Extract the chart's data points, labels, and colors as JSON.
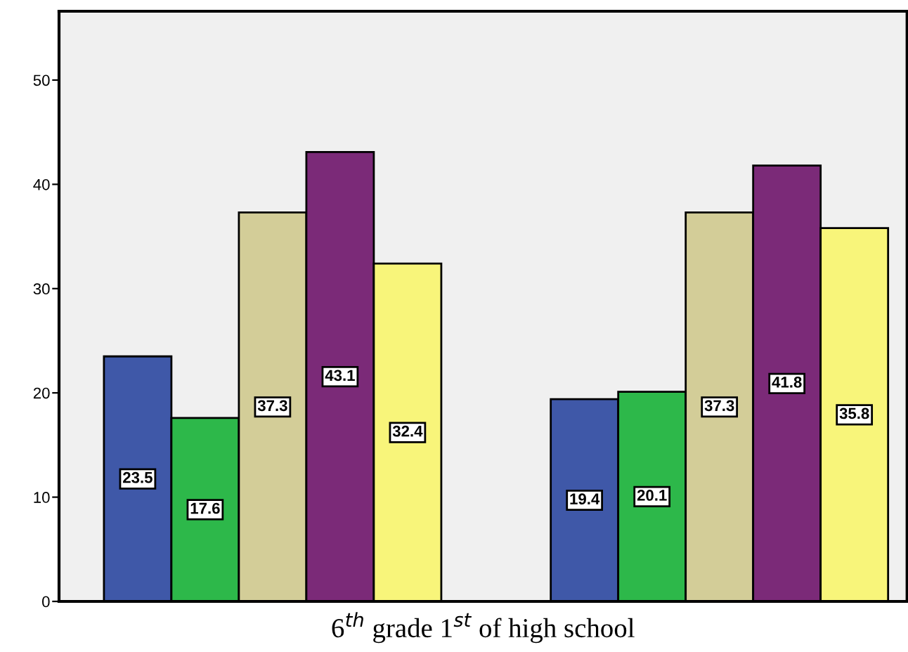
{
  "chart_data": {
    "type": "bar",
    "xlabel": "6$^{th}$ grade 1$^{st}$ of high school",
    "categories": [
      null,
      null
    ],
    "series": [
      {
        "color": "#3f58a8",
        "values": [
          23.5,
          19.4
        ]
      },
      {
        "color": "#2db84a",
        "values": [
          17.6,
          20.1
        ]
      },
      {
        "color": "#d3cd98",
        "values": [
          37.3,
          37.3
        ]
      },
      {
        "color": "#7b2a78",
        "values": [
          43.1,
          41.8
        ]
      },
      {
        "color": "#f8f57a",
        "values": [
          32.4,
          35.8
        ]
      }
    ],
    "ylim": [
      0,
      56.6
    ],
    "yticks": [
      0,
      10,
      20,
      30,
      40,
      50
    ],
    "grid": false,
    "legend": false,
    "data_labels": true
  }
}
